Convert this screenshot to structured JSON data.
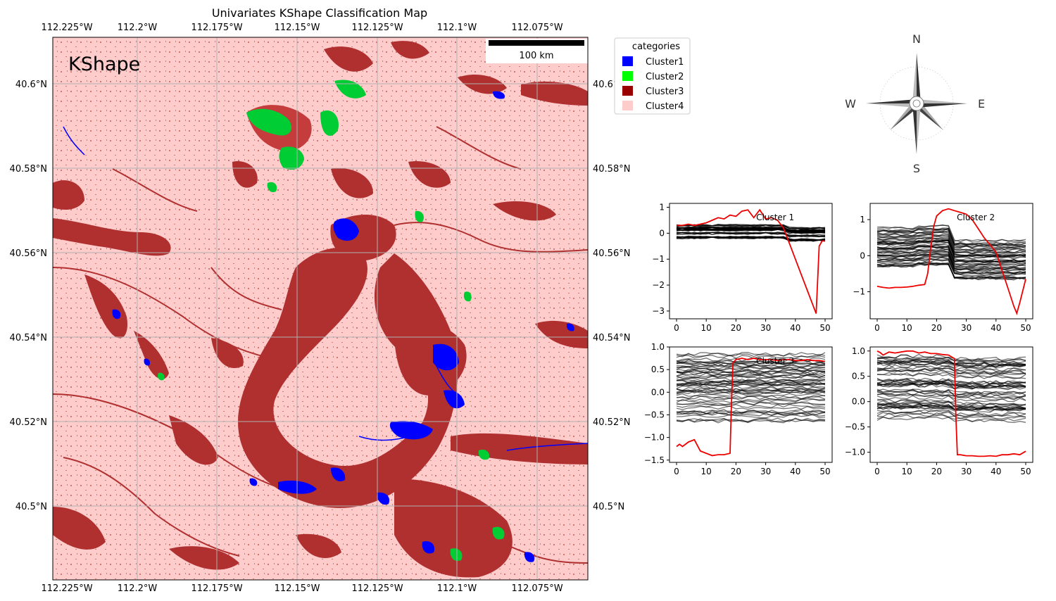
{
  "map": {
    "title": "Univariates KShape Classification Map",
    "panel_label": "KShape",
    "scalebar_label": "100 km",
    "lon_ticks": [
      "112.225°W",
      "112.2°W",
      "112.175°W",
      "112.15°W",
      "112.125°W",
      "112.1°W",
      "112.075°W"
    ],
    "lat_ticks": [
      "40.6°N",
      "40.58°N",
      "40.56°N",
      "40.54°N",
      "40.52°N",
      "40.5°N"
    ],
    "legend": {
      "title": "categories",
      "items": [
        {
          "label": "Cluster1",
          "color": "#0000ff"
        },
        {
          "label": "Cluster2",
          "color": "#00ff00"
        },
        {
          "label": "Cluster3",
          "color": "#990000"
        },
        {
          "label": "Cluster4",
          "color": "#ffcccc"
        }
      ]
    },
    "class_colors": {
      "cluster1": "#0000ff",
      "cluster2": "#00cc33",
      "cluster3": "#b03030",
      "cluster4": "#ffcccc"
    }
  },
  "compass": {
    "n": "N",
    "s": "S",
    "e": "E",
    "w": "W"
  },
  "chart_data": [
    {
      "type": "line",
      "label": "Cluster 1",
      "xlim": [
        0,
        50
      ],
      "ylim": [
        -3.3,
        1.15
      ],
      "xticks": [
        0,
        10,
        20,
        30,
        40,
        50
      ],
      "yticks": [
        1,
        0,
        -1,
        -2,
        -3
      ],
      "centroid": {
        "x": [
          0,
          2,
          4,
          6,
          8,
          10,
          12,
          14,
          16,
          18,
          20,
          22,
          24,
          26,
          28,
          30,
          32,
          34,
          36,
          38,
          40,
          42,
          44,
          46,
          47,
          48,
          49,
          50
        ],
        "y": [
          0.3,
          0.3,
          0.35,
          0.3,
          0.35,
          0.4,
          0.5,
          0.6,
          0.55,
          0.7,
          0.65,
          0.85,
          0.9,
          0.6,
          0.9,
          0.55,
          0.6,
          0.5,
          0.2,
          -0.4,
          -1.0,
          -1.6,
          -2.2,
          -2.8,
          -3.1,
          -0.5,
          -0.3,
          -0.3
        ]
      },
      "band": {
        "center": [
          0.05,
          0.05,
          0.05,
          -0.05
        ],
        "spread": 0.3
      }
    },
    {
      "type": "line",
      "label": "Cluster 2",
      "xlim": [
        0,
        50
      ],
      "ylim": [
        -1.75,
        1.45
      ],
      "xticks": [
        0,
        10,
        20,
        30,
        40,
        50
      ],
      "yticks": [
        1,
        0,
        -1
      ],
      "centroid": {
        "x": [
          0,
          2,
          4,
          6,
          8,
          10,
          12,
          14,
          16,
          17,
          18,
          19,
          20,
          22,
          24,
          26,
          28,
          30,
          32,
          34,
          36,
          38,
          40,
          42,
          44,
          46,
          47,
          48,
          50
        ],
        "y": [
          -0.85,
          -0.88,
          -0.9,
          -0.88,
          -0.88,
          -0.87,
          -0.85,
          -0.82,
          -0.8,
          -0.5,
          0.2,
          0.8,
          1.1,
          1.25,
          1.3,
          1.25,
          1.2,
          1.15,
          1.0,
          0.75,
          0.5,
          0.3,
          0.1,
          -0.4,
          -0.9,
          -1.4,
          -1.6,
          -1.3,
          -0.65
        ]
      },
      "band": {
        "center": [
          0.25,
          0.3,
          -0.1,
          -0.1
        ],
        "spread": 0.55
      }
    },
    {
      "type": "line",
      "label": "Cluster 3",
      "xlim": [
        0,
        50
      ],
      "ylim": [
        -1.55,
        1.0
      ],
      "xticks": [
        0,
        10,
        20,
        30,
        40,
        50
      ],
      "yticks": [
        1.0,
        0.5,
        0.0,
        -0.5,
        -1.0,
        -1.5
      ],
      "centroid": {
        "x": [
          0,
          1,
          2,
          4,
          6,
          8,
          10,
          12,
          14,
          16,
          18,
          18.5,
          19,
          20,
          22,
          24,
          26,
          28,
          30,
          32,
          34,
          36,
          38,
          40,
          42,
          44,
          46,
          48,
          50
        ],
        "y": [
          -1.2,
          -1.15,
          -1.2,
          -1.1,
          -1.05,
          -1.3,
          -1.35,
          -1.4,
          -1.38,
          -1.38,
          -1.35,
          -0.2,
          0.65,
          0.72,
          0.75,
          0.72,
          0.75,
          0.72,
          0.72,
          0.72,
          0.7,
          0.72,
          0.72,
          0.7,
          0.7,
          0.72,
          0.7,
          0.7,
          0.68
        ]
      },
      "band": {
        "center": [
          0.1,
          0.1,
          0.1,
          0.1
        ],
        "spread": 0.75
      }
    },
    {
      "type": "line",
      "label": "",
      "xlim": [
        0,
        50
      ],
      "ylim": [
        -1.2,
        1.08
      ],
      "xticks": [
        0,
        10,
        20,
        30,
        40,
        50
      ],
      "yticks": [
        1.0,
        0.5,
        0.0,
        -0.5,
        -1.0
      ],
      "centroid": {
        "x": [
          0,
          1,
          2,
          4,
          6,
          8,
          10,
          12,
          14,
          16,
          18,
          20,
          22,
          24,
          26,
          26.5,
          27,
          28,
          30,
          32,
          34,
          36,
          38,
          40,
          42,
          44,
          46,
          48,
          50
        ],
        "y": [
          1.0,
          0.97,
          0.92,
          0.98,
          0.96,
          0.98,
          1.0,
          1.0,
          0.96,
          0.98,
          0.95,
          0.95,
          0.93,
          0.92,
          0.85,
          -0.3,
          -1.05,
          -1.05,
          -1.07,
          -1.07,
          -1.08,
          -1.08,
          -1.07,
          -1.08,
          -1.05,
          -1.05,
          -1.03,
          -1.05,
          -0.98
        ]
      },
      "band": {
        "center": [
          0.3,
          0.3,
          0.25,
          0.25
        ],
        "spread": 0.65
      }
    }
  ]
}
